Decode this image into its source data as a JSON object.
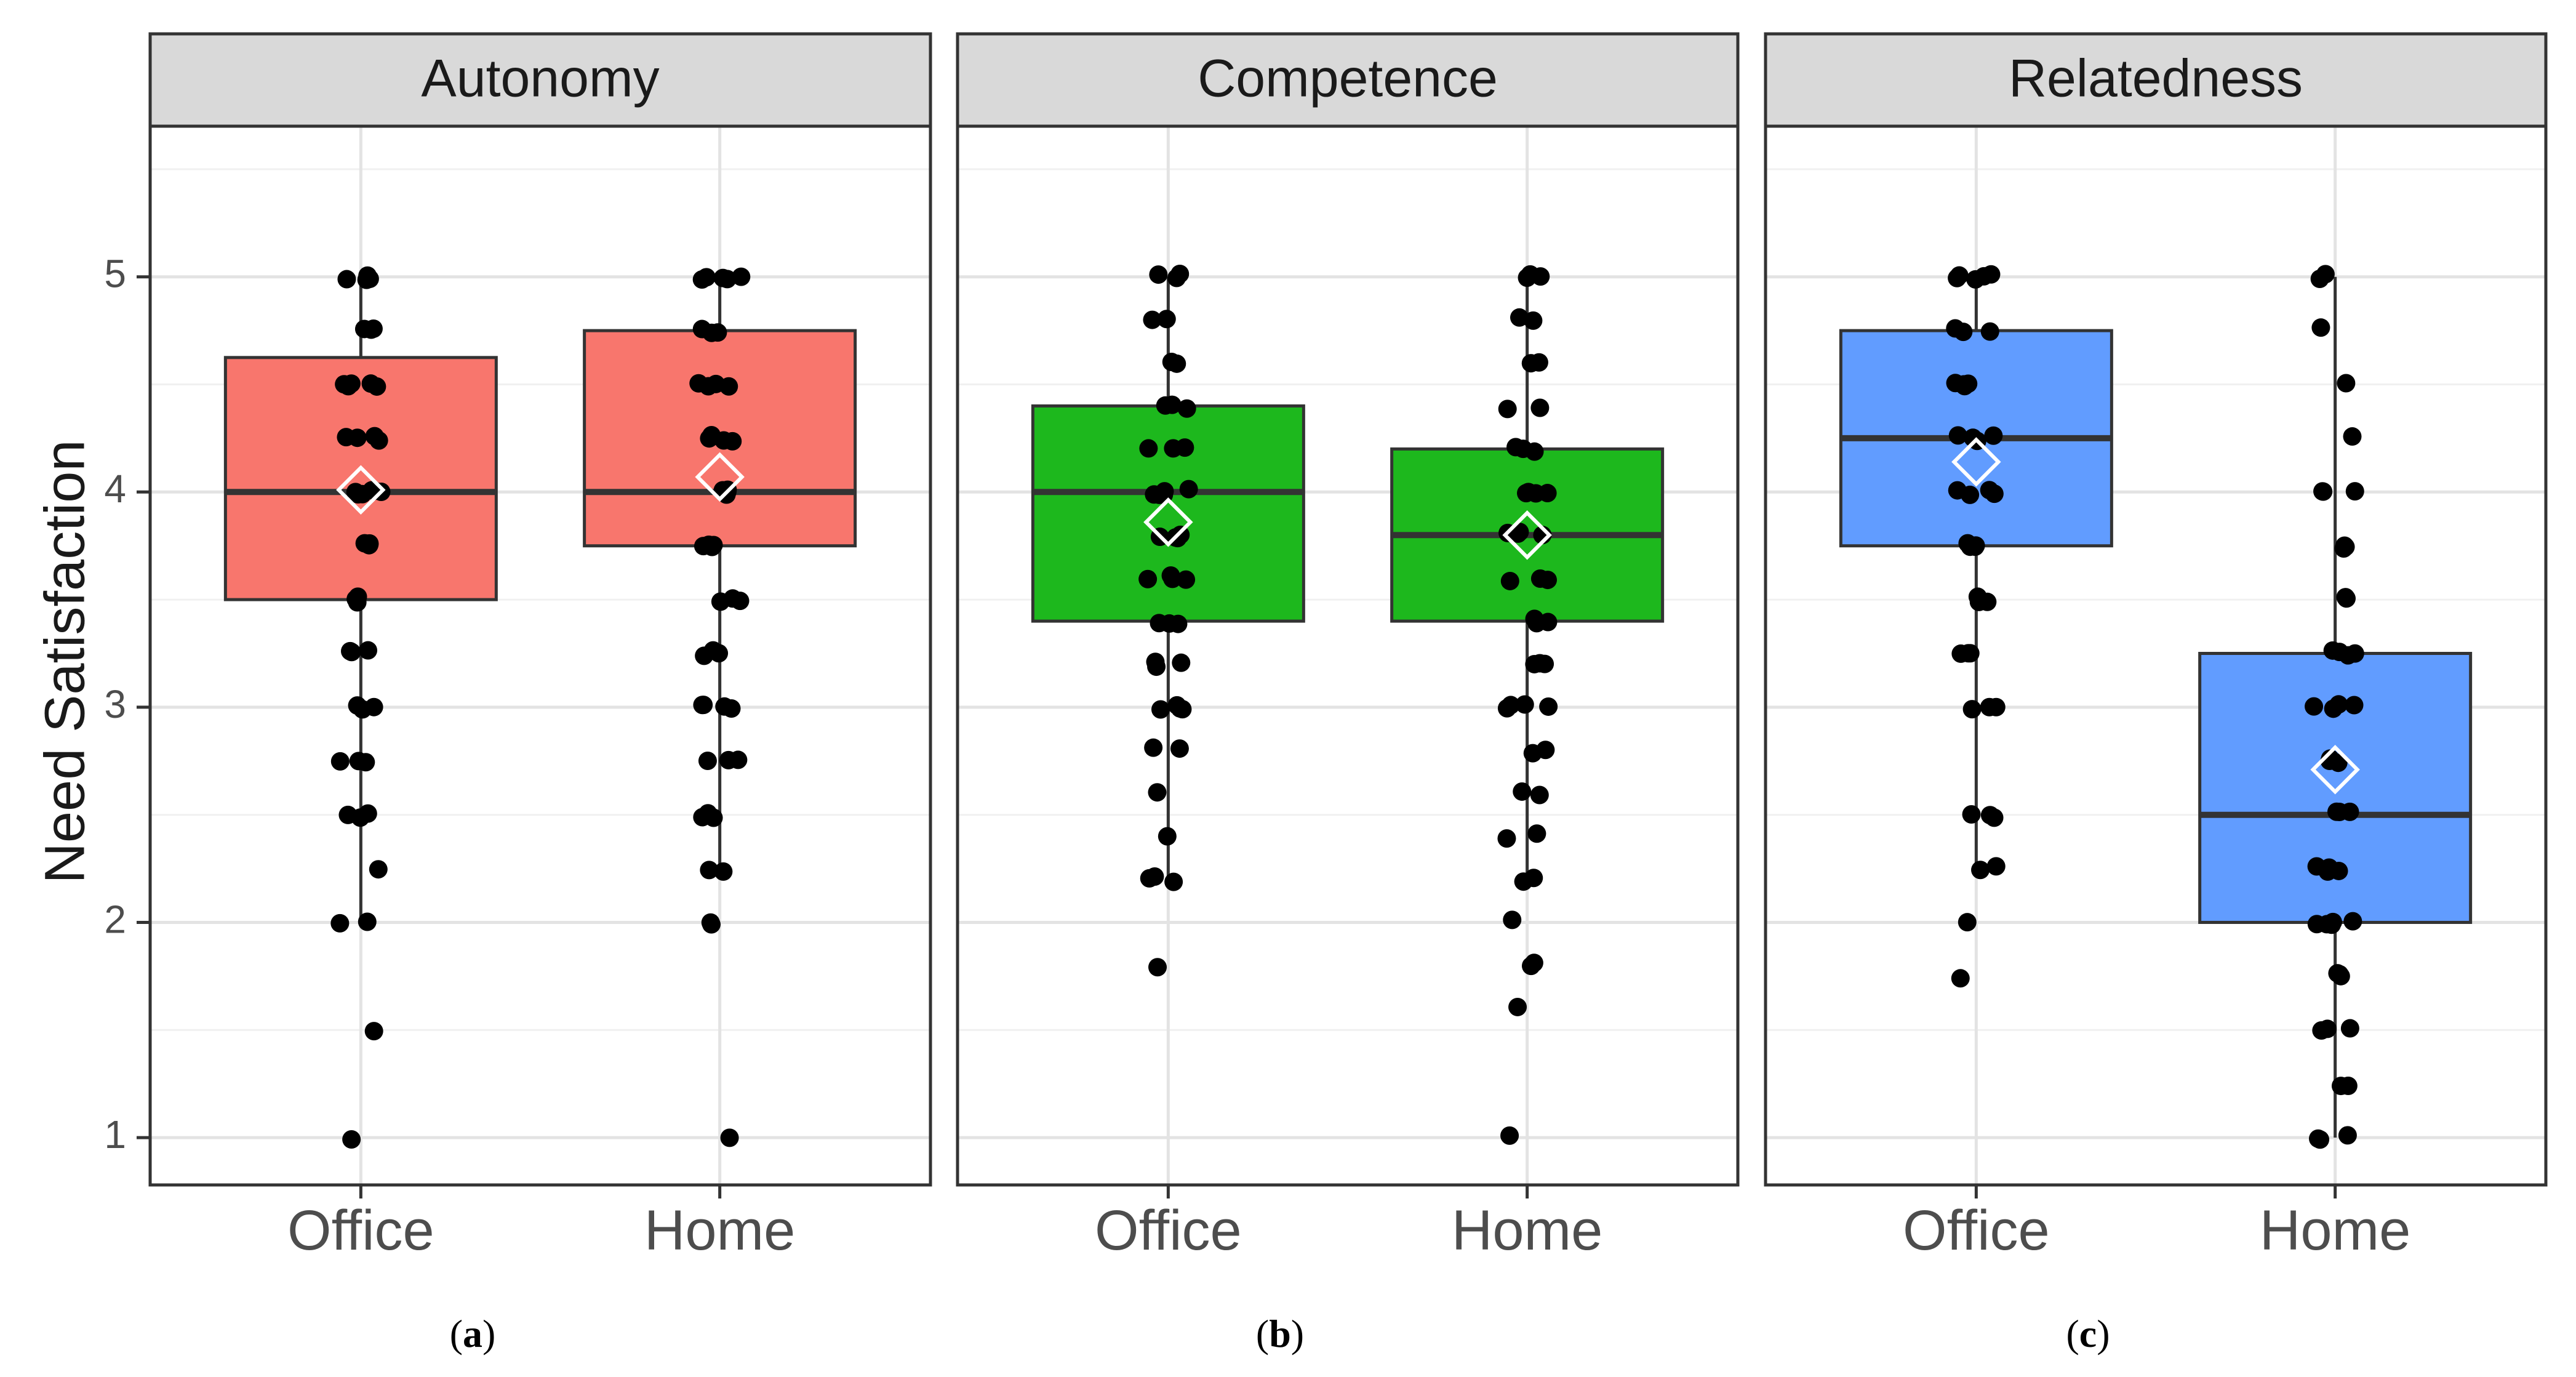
{
  "chart_data": {
    "type": "boxplot",
    "ylabel": "Need Satisfaction",
    "xlabel": "",
    "ylim": [
      0.78,
      5.7
    ],
    "yticks": [
      1,
      2,
      3,
      4,
      5
    ],
    "categories": [
      "Office",
      "Home"
    ],
    "grid": true,
    "legend": "none",
    "panels": [
      {
        "strip_label": "Autonomy",
        "sublabel_letter": "a",
        "fill_color": "#f8766d",
        "groups": [
          {
            "name": "Office",
            "q1": 3.5,
            "median": 4.0,
            "q3": 4.625,
            "whisker_low": 2.0,
            "whisker_high": 5.0,
            "mean": 4.01,
            "points": [
              5,
              5,
              5,
              5,
              5,
              4.75,
              4.75,
              4.75,
              4.5,
              4.5,
              4.5,
              4.5,
              4.5,
              4.25,
              4.25,
              4.25,
              4.25,
              4,
              4,
              4,
              4,
              4,
              4,
              3.75,
              3.75,
              3.75,
              3.75,
              3.5,
              3.5,
              3.5,
              3.25,
              3.25,
              3.25,
              3,
              3,
              3,
              2.75,
              2.75,
              2.75,
              2.5,
              2.5,
              2.5,
              2.25,
              2,
              2,
              1.5,
              1
            ]
          },
          {
            "name": "Home",
            "q1": 3.75,
            "median": 4.0,
            "q3": 4.75,
            "whisker_low": 2.25,
            "whisker_high": 5.0,
            "mean": 4.07,
            "points": [
              5,
              5,
              5,
              5,
              5,
              4.75,
              4.75,
              4.75,
              4.5,
              4.5,
              4.5,
              4.5,
              4.25,
              4.25,
              4.25,
              4.25,
              4,
              4,
              4,
              4,
              4,
              4,
              3.75,
              3.75,
              3.75,
              3.75,
              3.5,
              3.5,
              3.5,
              3.25,
              3.25,
              3.25,
              3,
              3,
              3,
              3,
              2.75,
              2.75,
              2.75,
              2.5,
              2.5,
              2.5,
              2.25,
              2.25,
              2,
              2,
              1
            ]
          }
        ]
      },
      {
        "strip_label": "Competence",
        "sublabel_letter": "b",
        "fill_color": "#1db81d",
        "groups": [
          {
            "name": "Office",
            "q1": 3.4,
            "median": 4.0,
            "q3": 4.4,
            "whisker_low": 2.2,
            "whisker_high": 5.0,
            "mean": 3.86,
            "points": [
              5,
              5,
              5,
              4.8,
              4.8,
              4.6,
              4.6,
              4.4,
              4.4,
              4.4,
              4.2,
              4.2,
              4.2,
              4,
              4,
              4,
              4,
              4,
              3.8,
              3.8,
              3.8,
              3.8,
              3.6,
              3.6,
              3.6,
              3.6,
              3.4,
              3.4,
              3.4,
              3.2,
              3.2,
              3.2,
              3,
              3,
              3,
              3,
              2.8,
              2.8,
              2.6,
              2.4,
              2.2,
              2.2,
              2.2,
              1.8
            ]
          },
          {
            "name": "Home",
            "q1": 3.4,
            "median": 3.8,
            "q3": 4.2,
            "whisker_low": 2.2,
            "whisker_high": 5.0,
            "mean": 3.8,
            "points": [
              5,
              5,
              5,
              4.8,
              4.8,
              4.6,
              4.6,
              4.4,
              4.4,
              4.2,
              4.2,
              4.2,
              4,
              4,
              4,
              4,
              3.8,
              3.8,
              3.8,
              3.8,
              3.6,
              3.6,
              3.6,
              3.4,
              3.4,
              3.4,
              3.2,
              3.2,
              3.2,
              3,
              3,
              3,
              3,
              2.8,
              2.8,
              2.6,
              2.6,
              2.4,
              2.4,
              2.2,
              2.2,
              2,
              1.8,
              1.8,
              1.6,
              1
            ]
          }
        ]
      },
      {
        "strip_label": "Relatedness",
        "sublabel_letter": "c",
        "fill_color": "#619cff",
        "groups": [
          {
            "name": "Office",
            "q1": 3.75,
            "median": 4.25,
            "q3": 4.75,
            "whisker_low": 2.25,
            "whisker_high": 5.0,
            "mean": 4.14,
            "points": [
              5,
              5,
              5,
              5,
              5,
              4.75,
              4.75,
              4.75,
              4.5,
              4.5,
              4.5,
              4.5,
              4.25,
              4.25,
              4.25,
              4.25,
              4,
              4,
              4,
              4,
              3.75,
              3.75,
              3.75,
              3.75,
              3.5,
              3.5,
              3.5,
              3.25,
              3.25,
              3.25,
              3,
              3,
              3,
              2.5,
              2.5,
              2.5,
              2.25,
              2.25,
              2,
              1.75
            ]
          },
          {
            "name": "Home",
            "q1": 2.0,
            "median": 2.5,
            "q3": 3.25,
            "whisker_low": 1.0,
            "whisker_high": 5.0,
            "mean": 2.71,
            "points": [
              5,
              5,
              4.75,
              4.5,
              4.25,
              4,
              4,
              4,
              3.75,
              3.75,
              3.75,
              3.5,
              3.5,
              3.25,
              3.25,
              3.25,
              3.25,
              3,
              3,
              3,
              3,
              2.75,
              2.75,
              2.75,
              2.5,
              2.5,
              2.5,
              2.25,
              2.25,
              2.25,
              2.25,
              2,
              2,
              2,
              2,
              2,
              1.75,
              1.75,
              1.75,
              1.5,
              1.5,
              1.5,
              1.25,
              1.25,
              1,
              1,
              1
            ]
          }
        ]
      }
    ]
  }
}
